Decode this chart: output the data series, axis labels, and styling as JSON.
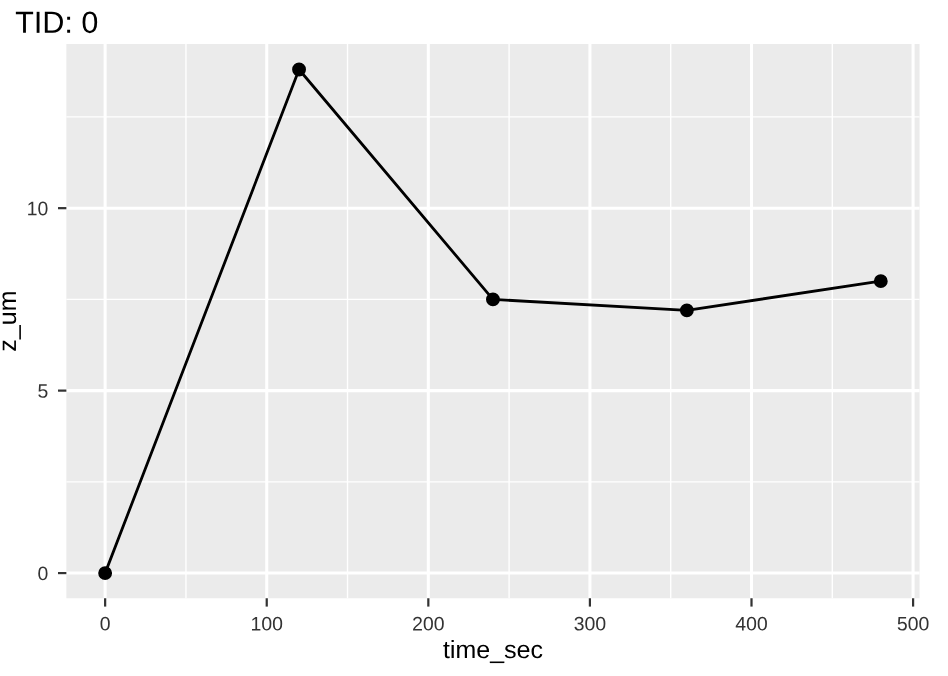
{
  "chart_data": {
    "type": "line",
    "title": "TID: 0",
    "xlabel": "time_sec",
    "ylabel": "z_um",
    "x": [
      0,
      120,
      240,
      360,
      480
    ],
    "series": [
      {
        "color": "#000000",
        "values": [
          0,
          13.8,
          7.5,
          7.2,
          8.0
        ]
      }
    ],
    "xlim": [
      -24,
      504
    ],
    "ylim": [
      -0.69,
      14.5
    ],
    "xticks": [
      0,
      100,
      200,
      300,
      400,
      500
    ],
    "yticks": [
      0,
      5,
      10
    ],
    "grid": true,
    "marker": "circle",
    "line_style": "solid"
  }
}
